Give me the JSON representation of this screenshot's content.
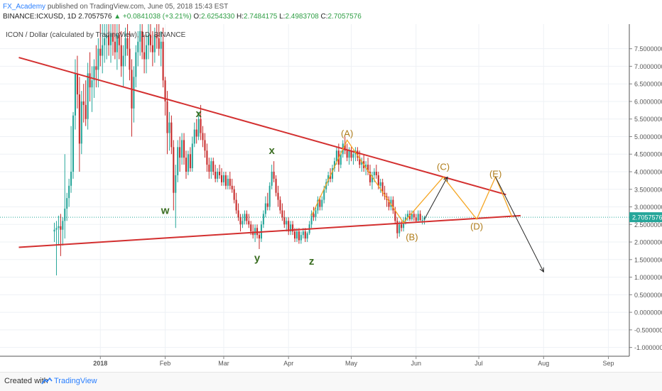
{
  "header": {
    "author": "FX_Academy",
    "published": "published on TradingView.com, June 05, 2018 15:43 EST",
    "symbol": "BINANCE:ICXUSD, 1D",
    "last": "2.7057576",
    "change": "+0.0841038 (+3.21%)",
    "o_label": "O:",
    "o": "2.6254330",
    "h_label": "H:",
    "h": "2.7484175",
    "l_label": "L:",
    "l": "2.4983708",
    "c_label": "C:",
    "c": "2.7057576"
  },
  "footer": {
    "created_with": "Created with",
    "brand": "TradingView"
  },
  "colors": {
    "up": "#26a69a",
    "down": "#c62828",
    "trendline": "#d32f2f",
    "wave": "#f5a623",
    "label_abc": "#b07d1a",
    "label_wxyz": "#3b6e22",
    "price_tag": "#26a69a"
  },
  "chart_data": {
    "type": "candlestick",
    "title": "ICON / Dollar (calculated by TradingView), 1D, BINANCE",
    "x_tick_labels": [
      "2018",
      "Feb",
      "Mar",
      "Apr",
      "May",
      "Jun",
      "Jul",
      "Aug",
      "Sep"
    ],
    "x_ticks": [
      "2018-01-01",
      "2018-02-01",
      "2018-03-01",
      "2018-04-01",
      "2018-05-01",
      "2018-06-01",
      "2018-07-01",
      "2018-08-01",
      "2018-09-01"
    ],
    "x_range": [
      "2017-11-14",
      "2018-09-11"
    ],
    "ylim": [
      -1.25,
      8.2
    ],
    "y_tick_labels": [
      "7.5000000",
      "7.0000000",
      "6.5000000",
      "6.0000000",
      "5.5000000",
      "5.0000000",
      "4.5000000",
      "4.0000000",
      "3.5000000",
      "3.0000000",
      "2.5000000",
      "2.0000000",
      "1.5000000",
      "1.0000000",
      "0.5000000",
      "0.0000000",
      "-0.5000000",
      "-1.0000000"
    ],
    "last_price": 2.7057576,
    "last_price_label": "2.7057576",
    "candles": [
      [
        "2017-12-10",
        2.3,
        2.55,
        2.0,
        2.35
      ],
      [
        "2017-12-11",
        2.35,
        2.6,
        1.05,
        2.4
      ],
      [
        "2017-12-12",
        2.4,
        2.75,
        1.9,
        2.45
      ],
      [
        "2017-12-13",
        2.45,
        2.8,
        1.6,
        2.35
      ],
      [
        "2017-12-14",
        2.35,
        2.7,
        1.9,
        2.6
      ],
      [
        "2017-12-15",
        2.6,
        4.5,
        2.1,
        2.95
      ],
      [
        "2017-12-16",
        2.95,
        3.4,
        2.6,
        3.25
      ],
      [
        "2017-12-17",
        3.25,
        3.8,
        3.0,
        3.6
      ],
      [
        "2017-12-18",
        3.6,
        5.3,
        3.4,
        4.0
      ],
      [
        "2017-12-19",
        4.0,
        5.7,
        3.8,
        5.6
      ],
      [
        "2017-12-20",
        5.6,
        7.2,
        5.2,
        6.8
      ],
      [
        "2017-12-21",
        6.8,
        7.3,
        5.8,
        6.2
      ],
      [
        "2017-12-22",
        6.2,
        6.7,
        4.0,
        4.8
      ],
      [
        "2017-12-23",
        4.8,
        6.3,
        4.5,
        6.0
      ],
      [
        "2017-12-24",
        6.0,
        6.5,
        5.4,
        5.9
      ],
      [
        "2017-12-25",
        5.9,
        6.6,
        5.3,
        5.5
      ],
      [
        "2017-12-26",
        5.5,
        7.1,
        5.2,
        6.8
      ],
      [
        "2017-12-27",
        6.8,
        7.4,
        6.0,
        6.4
      ],
      [
        "2017-12-28",
        6.4,
        7.0,
        5.7,
        6.6
      ],
      [
        "2017-12-29",
        6.6,
        7.2,
        6.1,
        7.0
      ],
      [
        "2017-12-30",
        7.0,
        7.6,
        6.4,
        6.9
      ],
      [
        "2017-12-31",
        6.9,
        7.8,
        6.4,
        7.5
      ],
      [
        "2018-01-01",
        7.5,
        8.2,
        7.0,
        7.3
      ],
      [
        "2018-01-02",
        7.3,
        8.2,
        6.8,
        7.6
      ],
      [
        "2018-01-03",
        7.6,
        8.2,
        7.1,
        7.8
      ],
      [
        "2018-01-04",
        7.8,
        8.2,
        7.2,
        7.9
      ],
      [
        "2018-01-05",
        7.9,
        8.2,
        7.3,
        7.6
      ],
      [
        "2018-01-06",
        7.6,
        8.2,
        7.1,
        7.95
      ],
      [
        "2018-01-07",
        7.95,
        8.2,
        7.3,
        7.7
      ],
      [
        "2018-01-08",
        7.7,
        8.2,
        7.2,
        7.4
      ],
      [
        "2018-01-09",
        7.4,
        8.2,
        6.9,
        7.9
      ],
      [
        "2018-01-10",
        7.9,
        8.2,
        7.2,
        7.6
      ],
      [
        "2018-01-11",
        7.6,
        8.0,
        6.7,
        7.0
      ],
      [
        "2018-01-12",
        7.0,
        7.6,
        6.4,
        7.3
      ],
      [
        "2018-01-13",
        7.3,
        8.1,
        7.0,
        7.8
      ],
      [
        "2018-01-14",
        7.8,
        8.2,
        7.3,
        7.5
      ],
      [
        "2018-01-15",
        7.5,
        8.0,
        6.6,
        6.9
      ],
      [
        "2018-01-16",
        6.9,
        7.2,
        5.0,
        5.8
      ],
      [
        "2018-01-17",
        5.8,
        7.0,
        5.4,
        6.7
      ],
      [
        "2018-01-18",
        6.7,
        7.6,
        6.4,
        7.4
      ],
      [
        "2018-01-19",
        7.4,
        8.0,
        7.0,
        7.7
      ],
      [
        "2018-01-20",
        7.7,
        8.2,
        7.3,
        8.0
      ],
      [
        "2018-01-21",
        8.0,
        8.2,
        7.2,
        7.4
      ],
      [
        "2018-01-22",
        7.4,
        7.9,
        6.8,
        7.2
      ],
      [
        "2018-01-23",
        7.2,
        7.9,
        6.8,
        7.6
      ],
      [
        "2018-01-24",
        7.6,
        8.2,
        7.2,
        7.9
      ],
      [
        "2018-01-25",
        7.9,
        8.2,
        7.4,
        7.6
      ],
      [
        "2018-01-26",
        7.6,
        8.0,
        7.0,
        7.4
      ],
      [
        "2018-01-27",
        7.4,
        8.1,
        7.1,
        7.9
      ],
      [
        "2018-01-28",
        7.9,
        8.2,
        7.5,
        7.8
      ],
      [
        "2018-01-29",
        7.8,
        8.2,
        7.3,
        7.5
      ],
      [
        "2018-01-30",
        7.5,
        8.0,
        7.0,
        7.7
      ],
      [
        "2018-01-31",
        7.7,
        8.1,
        6.4,
        6.6
      ],
      [
        "2018-02-01",
        6.6,
        6.7,
        5.6,
        6.0
      ],
      [
        "2018-02-02",
        6.0,
        6.3,
        4.5,
        5.1
      ],
      [
        "2018-02-03",
        5.1,
        5.7,
        4.6,
        5.4
      ],
      [
        "2018-02-04",
        5.4,
        5.6,
        4.5,
        4.7
      ],
      [
        "2018-02-05",
        4.7,
        4.9,
        2.9,
        3.4
      ],
      [
        "2018-02-06",
        3.4,
        4.2,
        2.4,
        3.9
      ],
      [
        "2018-02-07",
        3.9,
        4.9,
        3.7,
        4.7
      ],
      [
        "2018-02-08",
        4.7,
        5.0,
        4.0,
        4.4
      ],
      [
        "2018-02-09",
        4.4,
        5.1,
        4.2,
        4.9
      ],
      [
        "2018-02-10",
        4.9,
        5.1,
        4.2,
        4.4
      ],
      [
        "2018-02-11",
        4.4,
        4.6,
        3.8,
        4.0
      ],
      [
        "2018-02-12",
        4.0,
        4.6,
        3.9,
        4.5
      ],
      [
        "2018-02-13",
        4.5,
        4.7,
        4.0,
        4.1
      ],
      [
        "2018-02-14",
        4.1,
        5.0,
        4.0,
        4.8
      ],
      [
        "2018-02-15",
        4.8,
        5.4,
        4.7,
        5.2
      ],
      [
        "2018-02-16",
        5.2,
        5.5,
        4.8,
        5.0
      ],
      [
        "2018-02-17",
        5.0,
        5.7,
        4.9,
        5.5
      ],
      [
        "2018-02-18",
        5.5,
        5.9,
        4.9,
        5.1
      ],
      [
        "2018-02-19",
        5.1,
        5.3,
        4.7,
        4.9
      ],
      [
        "2018-02-20",
        4.9,
        5.1,
        4.4,
        4.6
      ],
      [
        "2018-02-21",
        4.6,
        4.8,
        4.0,
        4.2
      ],
      [
        "2018-02-22",
        4.2,
        4.4,
        3.8,
        4.0
      ],
      [
        "2018-02-23",
        4.0,
        4.4,
        3.8,
        4.3
      ],
      [
        "2018-02-24",
        4.3,
        4.4,
        3.9,
        4.0
      ],
      [
        "2018-02-25",
        4.0,
        4.2,
        3.7,
        3.8
      ],
      [
        "2018-02-26",
        3.8,
        4.1,
        3.7,
        4.0
      ],
      [
        "2018-02-27",
        4.0,
        4.2,
        3.8,
        3.9
      ],
      [
        "2018-02-28",
        3.9,
        4.1,
        3.6,
        3.7
      ],
      [
        "2018-03-01",
        3.7,
        4.0,
        3.6,
        3.9
      ],
      [
        "2018-03-02",
        3.9,
        4.0,
        3.5,
        3.6
      ],
      [
        "2018-03-03",
        3.6,
        3.9,
        3.5,
        3.8
      ],
      [
        "2018-03-04",
        3.8,
        4.0,
        3.5,
        3.6
      ],
      [
        "2018-03-05",
        3.6,
        3.8,
        3.4,
        3.5
      ],
      [
        "2018-03-06",
        3.5,
        3.6,
        3.1,
        3.2
      ],
      [
        "2018-03-07",
        3.2,
        3.4,
        2.8,
        2.9
      ],
      [
        "2018-03-08",
        2.9,
        3.1,
        2.6,
        2.7
      ],
      [
        "2018-03-09",
        2.7,
        2.8,
        2.3,
        2.5
      ],
      [
        "2018-03-10",
        2.5,
        2.8,
        2.4,
        2.6
      ],
      [
        "2018-03-11",
        2.6,
        2.9,
        2.5,
        2.8
      ],
      [
        "2018-03-12",
        2.8,
        2.9,
        2.5,
        2.6
      ],
      [
        "2018-03-13",
        2.6,
        2.8,
        2.4,
        2.5
      ],
      [
        "2018-03-14",
        2.5,
        2.6,
        2.2,
        2.3
      ],
      [
        "2018-03-15",
        2.3,
        2.5,
        2.1,
        2.2
      ],
      [
        "2018-03-16",
        2.2,
        2.5,
        2.0,
        2.4
      ],
      [
        "2018-03-17",
        2.4,
        2.5,
        2.1,
        2.2
      ],
      [
        "2018-03-18",
        2.2,
        2.3,
        1.8,
        2.1
      ],
      [
        "2018-03-19",
        2.1,
        2.6,
        2.0,
        2.5
      ],
      [
        "2018-03-20",
        2.5,
        2.9,
        2.4,
        2.8
      ],
      [
        "2018-03-21",
        2.8,
        3.3,
        2.7,
        3.1
      ],
      [
        "2018-03-22",
        3.1,
        3.4,
        2.9,
        3.0
      ],
      [
        "2018-03-23",
        3.0,
        3.7,
        2.9,
        3.6
      ],
      [
        "2018-03-24",
        3.6,
        4.2,
        3.5,
        4.0
      ],
      [
        "2018-03-25",
        4.0,
        4.3,
        3.7,
        3.8
      ],
      [
        "2018-03-26",
        3.8,
        3.9,
        3.3,
        3.4
      ],
      [
        "2018-03-27",
        3.4,
        3.6,
        3.0,
        3.2
      ],
      [
        "2018-03-28",
        3.2,
        3.3,
        2.8,
        2.9
      ],
      [
        "2018-03-29",
        2.9,
        3.1,
        2.6,
        2.7
      ],
      [
        "2018-03-30",
        2.7,
        2.9,
        2.4,
        2.5
      ],
      [
        "2018-03-31",
        2.5,
        2.7,
        2.3,
        2.6
      ],
      [
        "2018-04-01",
        2.6,
        2.7,
        2.2,
        2.3
      ],
      [
        "2018-04-02",
        2.3,
        2.6,
        2.2,
        2.5
      ],
      [
        "2018-04-03",
        2.5,
        2.6,
        2.2,
        2.3
      ],
      [
        "2018-04-04",
        2.3,
        2.4,
        2.0,
        2.1
      ],
      [
        "2018-04-05",
        2.1,
        2.4,
        2.0,
        2.3
      ],
      [
        "2018-04-06",
        2.3,
        2.4,
        1.95,
        2.05
      ],
      [
        "2018-04-07",
        2.05,
        2.3,
        1.95,
        2.2
      ],
      [
        "2018-04-08",
        2.2,
        2.4,
        2.1,
        2.3
      ],
      [
        "2018-04-09",
        2.3,
        2.4,
        2.0,
        2.1
      ],
      [
        "2018-04-10",
        2.1,
        2.3,
        2.0,
        2.25
      ],
      [
        "2018-04-11",
        2.25,
        2.6,
        2.2,
        2.5
      ],
      [
        "2018-04-12",
        2.5,
        2.9,
        2.4,
        2.8
      ],
      [
        "2018-04-13",
        2.8,
        3.0,
        2.6,
        2.7
      ],
      [
        "2018-04-14",
        2.7,
        3.0,
        2.6,
        2.9
      ],
      [
        "2018-04-15",
        2.9,
        3.3,
        2.8,
        3.2
      ],
      [
        "2018-04-16",
        3.2,
        3.3,
        2.9,
        3.0
      ],
      [
        "2018-04-17",
        3.0,
        3.3,
        2.9,
        3.2
      ],
      [
        "2018-04-18",
        3.2,
        3.6,
        3.1,
        3.5
      ],
      [
        "2018-04-19",
        3.5,
        3.8,
        3.4,
        3.7
      ],
      [
        "2018-04-20",
        3.7,
        4.0,
        3.6,
        3.9
      ],
      [
        "2018-04-21",
        3.9,
        4.1,
        3.7,
        3.8
      ],
      [
        "2018-04-22",
        3.8,
        4.2,
        3.7,
        4.1
      ],
      [
        "2018-04-23",
        4.1,
        4.4,
        4.0,
        4.3
      ],
      [
        "2018-04-24",
        4.3,
        4.7,
        4.2,
        4.6
      ],
      [
        "2018-04-25",
        4.6,
        4.8,
        4.0,
        4.2
      ],
      [
        "2018-04-26",
        4.2,
        4.6,
        4.1,
        4.5
      ],
      [
        "2018-04-27",
        4.5,
        4.9,
        4.4,
        4.8
      ],
      [
        "2018-04-28",
        4.8,
        5.0,
        4.5,
        4.6
      ],
      [
        "2018-04-29",
        4.6,
        4.8,
        4.3,
        4.4
      ],
      [
        "2018-04-30",
        4.4,
        4.7,
        4.2,
        4.6
      ],
      [
        "2018-05-01",
        4.6,
        4.7,
        4.3,
        4.4
      ],
      [
        "2018-05-02",
        4.4,
        4.6,
        4.2,
        4.5
      ],
      [
        "2018-05-03",
        4.5,
        4.7,
        4.3,
        4.6
      ],
      [
        "2018-05-04",
        4.6,
        4.7,
        4.3,
        4.4
      ],
      [
        "2018-05-05",
        4.4,
        4.6,
        4.1,
        4.2
      ],
      [
        "2018-05-06",
        4.2,
        4.4,
        4.0,
        4.3
      ],
      [
        "2018-05-07",
        4.3,
        4.5,
        4.0,
        4.1
      ],
      [
        "2018-05-08",
        4.1,
        4.3,
        3.9,
        4.2
      ],
      [
        "2018-05-09",
        4.2,
        4.4,
        3.9,
        4.0
      ],
      [
        "2018-05-10",
        4.0,
        4.2,
        3.6,
        3.7
      ],
      [
        "2018-05-11",
        3.7,
        4.0,
        3.5,
        3.9
      ],
      [
        "2018-05-12",
        3.9,
        4.1,
        3.7,
        4.0
      ],
      [
        "2018-05-13",
        4.0,
        4.2,
        3.8,
        3.9
      ],
      [
        "2018-05-14",
        3.9,
        4.0,
        3.5,
        3.6
      ],
      [
        "2018-05-15",
        3.6,
        3.8,
        3.4,
        3.7
      ],
      [
        "2018-05-16",
        3.7,
        3.8,
        3.3,
        3.4
      ],
      [
        "2018-05-17",
        3.4,
        3.6,
        3.2,
        3.3
      ],
      [
        "2018-05-18",
        3.3,
        3.4,
        3.0,
        3.2
      ],
      [
        "2018-05-19",
        3.2,
        3.3,
        2.9,
        3.0
      ],
      [
        "2018-05-20",
        3.0,
        3.3,
        2.9,
        3.2
      ],
      [
        "2018-05-21",
        3.2,
        3.3,
        2.8,
        2.9
      ],
      [
        "2018-05-22",
        2.9,
        3.0,
        2.5,
        2.6
      ],
      [
        "2018-05-23",
        2.6,
        2.7,
        2.1,
        2.25
      ],
      [
        "2018-05-24",
        2.25,
        2.6,
        2.15,
        2.5
      ],
      [
        "2018-05-25",
        2.5,
        2.6,
        2.3,
        2.4
      ],
      [
        "2018-05-26",
        2.4,
        2.7,
        2.3,
        2.6
      ],
      [
        "2018-05-27",
        2.6,
        2.8,
        2.5,
        2.7
      ],
      [
        "2018-05-28",
        2.7,
        2.9,
        2.6,
        2.8
      ],
      [
        "2018-05-29",
        2.8,
        2.9,
        2.6,
        2.65
      ],
      [
        "2018-05-30",
        2.65,
        2.9,
        2.6,
        2.8
      ],
      [
        "2018-05-31",
        2.8,
        2.9,
        2.6,
        2.7
      ],
      [
        "2018-06-01",
        2.7,
        2.8,
        2.55,
        2.6
      ],
      [
        "2018-06-02",
        2.6,
        2.9,
        2.6,
        2.8
      ],
      [
        "2018-06-03",
        2.8,
        2.9,
        2.6,
        2.62
      ],
      [
        "2018-06-04",
        2.62,
        2.75,
        2.5,
        2.625
      ],
      [
        "2018-06-05",
        2.625433,
        2.7484175,
        2.4983708,
        2.7057576
      ]
    ],
    "trendlines": [
      {
        "name": "upper",
        "from": [
          "2017-11-23",
          7.25
        ],
        "to": [
          "2018-07-14",
          3.35
        ]
      },
      {
        "name": "lower",
        "from": [
          "2017-11-23",
          1.85
        ],
        "to": [
          "2018-07-21",
          2.75
        ]
      }
    ],
    "wave_path": [
      [
        "2018-04-12",
        2.75
      ],
      [
        "2018-04-29",
        4.9
      ],
      [
        "2018-05-26",
        2.55
      ],
      [
        "2018-06-14",
        3.85
      ],
      [
        "2018-06-30",
        2.65
      ],
      [
        "2018-07-09",
        3.85
      ],
      [
        "2018-07-17",
        2.7
      ]
    ],
    "projections": [
      {
        "from": [
          "2018-06-05",
          2.65
        ],
        "to": [
          "2018-06-16",
          3.85
        ]
      },
      {
        "from": [
          "2018-07-09",
          3.85
        ],
        "to": [
          "2018-08-01",
          1.15
        ]
      }
    ],
    "wave_labels_abc": [
      {
        "text": "(A)",
        "x": "2018-04-29",
        "y": 5.0
      },
      {
        "text": "(B)",
        "x": "2018-05-30",
        "y": 2.05
      },
      {
        "text": "(C)",
        "x": "2018-06-14",
        "y": 4.05
      },
      {
        "text": "(D)",
        "x": "2018-06-30",
        "y": 2.35
      },
      {
        "text": "(E)",
        "x": "2018-07-09",
        "y": 3.85
      }
    ],
    "wave_labels_wxyz": [
      {
        "text": "w",
        "x": "2018-02-01",
        "y": 2.8
      },
      {
        "text": "x",
        "x": "2018-02-17",
        "y": 5.55
      },
      {
        "text": "x",
        "x": "2018-03-24",
        "y": 4.5
      },
      {
        "text": "y",
        "x": "2018-03-17",
        "y": 1.45
      },
      {
        "text": "z",
        "x": "2018-04-12",
        "y": 1.35
      }
    ]
  }
}
